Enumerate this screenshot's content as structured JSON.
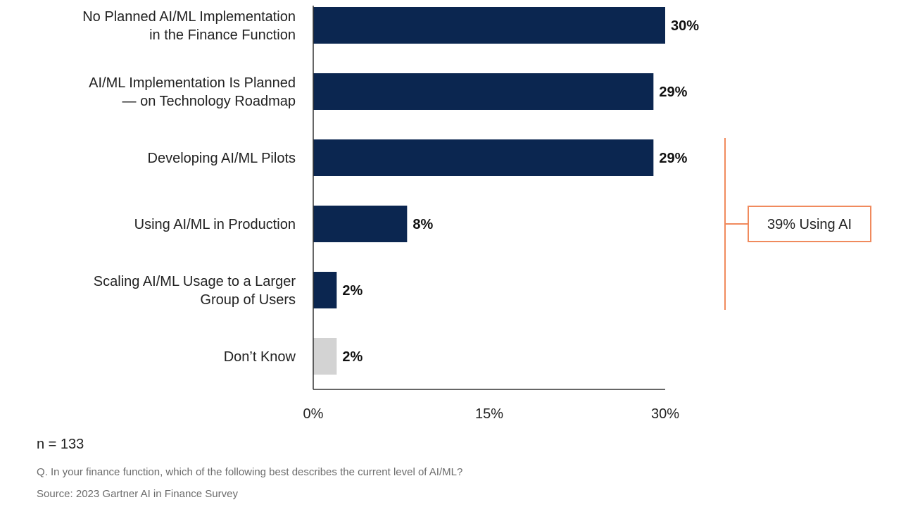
{
  "chart_data": {
    "type": "bar",
    "orientation": "horizontal",
    "categories": [
      [
        "No Planned AI/ML Implementation",
        "in the Finance Function"
      ],
      [
        "AI/ML Implementation Is Planned",
        "— on Technology Roadmap"
      ],
      [
        "Developing AI/ML Pilots"
      ],
      [
        "Using AI/ML in Production"
      ],
      [
        "Scaling AI/ML Usage to a Larger",
        "Group of Users"
      ],
      [
        "Don’t Know"
      ]
    ],
    "values": [
      30,
      29,
      29,
      8,
      2,
      2
    ],
    "value_labels": [
      "30%",
      "29%",
      "29%",
      "8%",
      "2%",
      "2%"
    ],
    "colors": [
      "#0b2650",
      "#0b2650",
      "#0b2650",
      "#0b2650",
      "#0b2650",
      "#d3d3d3"
    ],
    "xlim": [
      0,
      30
    ],
    "xticks": [
      0,
      15,
      30
    ],
    "xtick_labels": [
      "0%",
      "15%",
      "30%"
    ],
    "grid": false,
    "annotation": {
      "text": "39% Using AI",
      "bracket_categories": [
        2,
        4
      ],
      "color": "#f08a5d"
    }
  },
  "notes": {
    "n": "n = 133",
    "question": "Q. In your finance function, which of the following best describes the current level of AI/ML?",
    "source": "Source: 2023 Gartner AI in Finance Survey"
  }
}
